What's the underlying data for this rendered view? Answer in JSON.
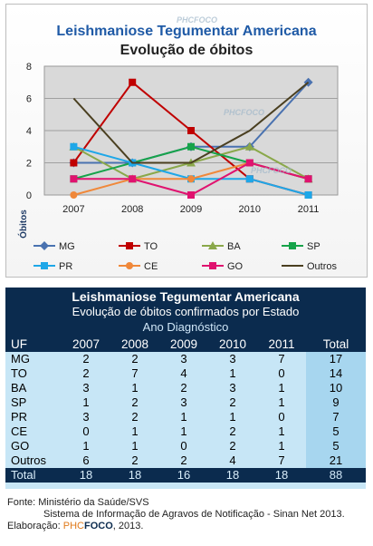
{
  "chart_data": {
    "type": "line",
    "title": "Leishmaniose Tegumentar Americana",
    "subtitle": "Evolução de óbitos",
    "ylabel": "Óbitos",
    "xlabel": "",
    "x": [
      "2007",
      "2008",
      "2009",
      "2010",
      "2011"
    ],
    "ylim": [
      0,
      8
    ],
    "yticks": [
      0,
      2,
      4,
      6,
      8
    ],
    "grid": true,
    "legend": "bottom",
    "series": [
      {
        "name": "MG",
        "values": [
          2,
          2,
          3,
          3,
          7
        ],
        "color": "#4a72b0",
        "marker": "diamond"
      },
      {
        "name": "TO",
        "values": [
          2,
          7,
          4,
          1,
          0
        ],
        "color": "#c00000",
        "marker": "square"
      },
      {
        "name": "BA",
        "values": [
          3,
          1,
          2,
          3,
          1
        ],
        "color": "#8aa84a",
        "marker": "triangle"
      },
      {
        "name": "SP",
        "values": [
          1,
          2,
          3,
          2,
          1
        ],
        "color": "#16a34a",
        "marker": "square"
      },
      {
        "name": "PR",
        "values": [
          3,
          2,
          1,
          1,
          0
        ],
        "color": "#1ea7e8",
        "marker": "square"
      },
      {
        "name": "CE",
        "values": [
          0,
          1,
          1,
          2,
          1
        ],
        "color": "#f0883a",
        "marker": "circle"
      },
      {
        "name": "GO",
        "values": [
          1,
          1,
          0,
          2,
          1
        ],
        "color": "#e0126f",
        "marker": "square"
      },
      {
        "name": "Outros",
        "values": [
          6,
          2,
          2,
          4,
          7
        ],
        "color": "#4a3f20",
        "marker": "none"
      }
    ]
  },
  "watermark": "PHCFOCO",
  "table": {
    "title": "Leishmaniose Tegumentar Americana",
    "subtitle": "Evolução de óbitos confirmados por Estado",
    "group_header": "Ano Diagnóstico",
    "columns": [
      "UF",
      "2007",
      "2008",
      "2009",
      "2010",
      "2011",
      "Total"
    ],
    "rows": [
      [
        "MG",
        "2",
        "2",
        "3",
        "3",
        "7",
        "17"
      ],
      [
        "TO",
        "2",
        "7",
        "4",
        "1",
        "0",
        "14"
      ],
      [
        "BA",
        "3",
        "1",
        "2",
        "3",
        "1",
        "10"
      ],
      [
        "SP",
        "1",
        "2",
        "3",
        "2",
        "1",
        "9"
      ],
      [
        "PR",
        "3",
        "2",
        "1",
        "1",
        "0",
        "7"
      ],
      [
        "CE",
        "0",
        "1",
        "1",
        "2",
        "1",
        "5"
      ],
      [
        "GO",
        "1",
        "1",
        "0",
        "2",
        "1",
        "5"
      ],
      [
        "Outros",
        "6",
        "2",
        "2",
        "4",
        "7",
        "21"
      ]
    ],
    "total_row": [
      "Total",
      "18",
      "18",
      "16",
      "18",
      "18",
      "88"
    ]
  },
  "footer": {
    "source_line": "Fonte: Ministério da Saúde/SVS",
    "system_line": "Sistema de Informação de Agravos de Notificação - Sinan Net 2013.",
    "elab_prefix": "Elaboração: ",
    "brand_phc": "PHC",
    "brand_foco": "FOCO",
    "elab_suffix": ", 2013."
  },
  "colors": {
    "title": "#1f5aa6",
    "plot_bg": "#d9d9d9",
    "table_header_bg": "#0b2b4e",
    "table_body_bg": "#c7e6f6"
  }
}
